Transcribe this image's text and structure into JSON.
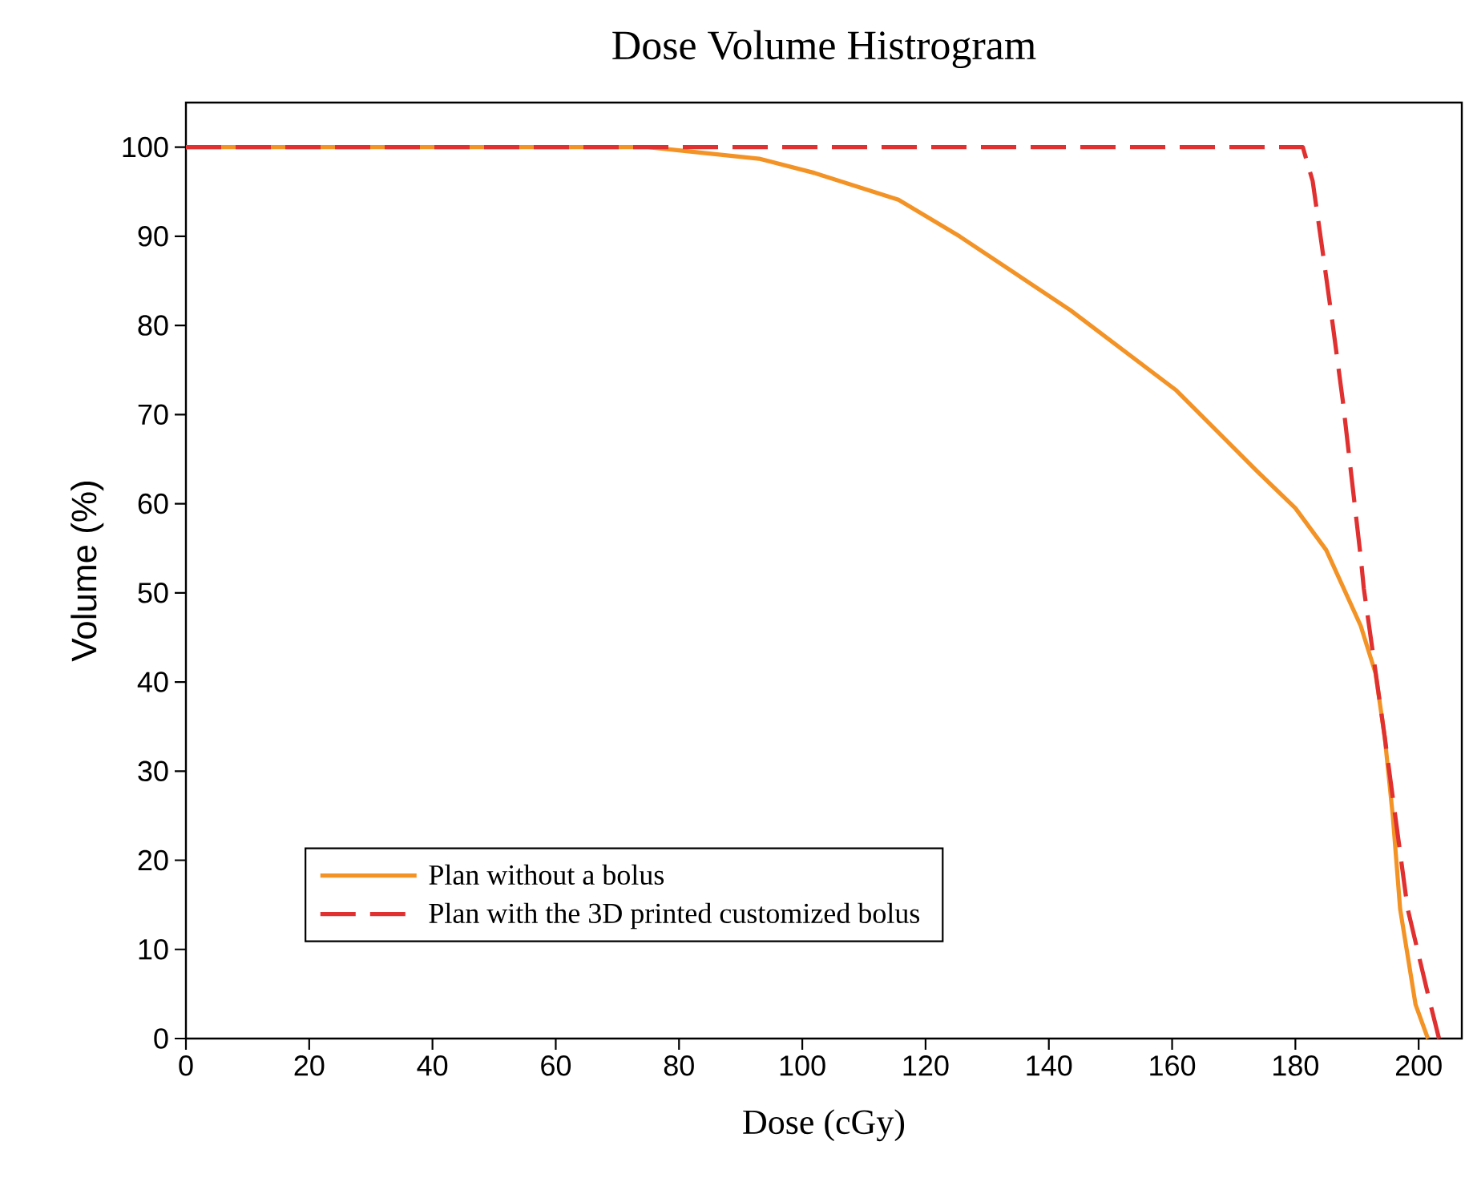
{
  "chart_data": {
    "type": "line",
    "title": "Dose Volume Histrogram",
    "xlabel": "Dose (cGy)",
    "ylabel": "Volume (%)",
    "xlim": [
      0,
      207
    ],
    "ylim": [
      0,
      105
    ],
    "xticks": [
      0,
      20,
      40,
      60,
      80,
      100,
      120,
      140,
      160,
      180,
      200
    ],
    "yticks": [
      0,
      10,
      20,
      30,
      40,
      50,
      60,
      70,
      80,
      90,
      100
    ],
    "grid": false,
    "legend": "bottom left",
    "series": [
      {
        "name": "Plan without a bolus",
        "color": "#f39325",
        "line_style": "solid",
        "x": [
          0,
          75,
          93,
          102,
          115.6,
          125.5,
          143.5,
          160.7,
          173.7,
          180,
          185,
          190.6,
          193,
          194.5,
          195.8,
          197,
          199.5,
          201.5
        ],
        "values": [
          100,
          100,
          98.7,
          97.1,
          94.1,
          90,
          81.7,
          72.7,
          63.7,
          59.5,
          54.8,
          46.3,
          41,
          33.8,
          25,
          14.5,
          3.8,
          0
        ]
      },
      {
        "name": "Plan with the 3D printed customized bolus",
        "color": "#e03030",
        "line_style": "dashed",
        "x": [
          0,
          181.2,
          182.8,
          184.2,
          186,
          187.7,
          190.6,
          191.1,
          194.5,
          198.2,
          201.5,
          203.3
        ],
        "values": [
          100,
          100,
          96.2,
          89.4,
          80.4,
          71.5,
          54,
          50.5,
          33.8,
          14.6,
          5,
          0
        ]
      }
    ]
  }
}
